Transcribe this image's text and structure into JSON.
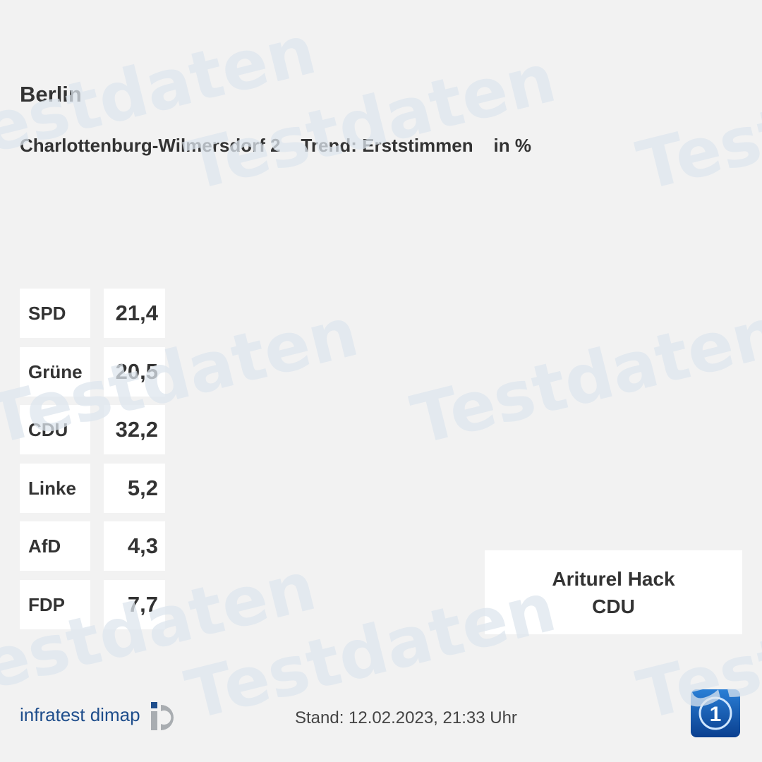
{
  "header": {
    "title": "Berlin",
    "subtitle": "Charlottenburg-Wilmersdorf 2    Trend: Erststimmen    in %"
  },
  "results": [
    {
      "party": "SPD",
      "value": "21,4"
    },
    {
      "party": "Grüne",
      "value": "20,5"
    },
    {
      "party": "CDU",
      "value": "32,2"
    },
    {
      "party": "Linke",
      "value": "5,2"
    },
    {
      "party": "AfD",
      "value": "4,3"
    },
    {
      "party": "FDP",
      "value": "7,7"
    }
  ],
  "winner": {
    "name": "Ariturel Hack",
    "party": "CDU"
  },
  "footer": {
    "logo": "infratest dimap",
    "stand": "Stand: 12.02.2023, 21:33 Uhr",
    "broadcaster_icon": "tagesschau-logo-icon"
  },
  "watermark": "Testdaten",
  "colors": {
    "background": "#f2f2f2",
    "watermark": "#dde5ee",
    "logo": "#1f4e8c"
  }
}
